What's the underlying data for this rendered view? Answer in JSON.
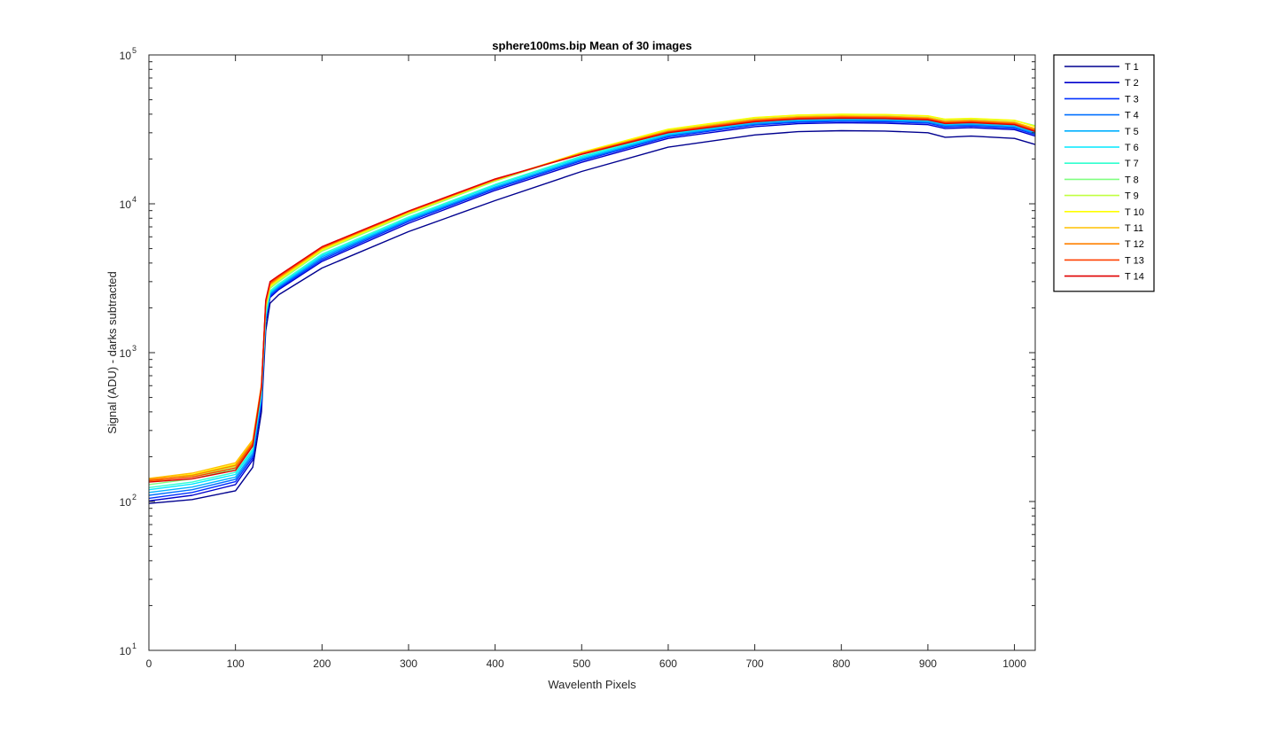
{
  "chart_data": {
    "type": "line",
    "title": "sphere100ms.bip  Mean of 30 images",
    "xlabel": "Wavelenth Pixels",
    "ylabel": "Signal (ADU) - darks subtracted",
    "xlim": [
      0,
      1024
    ],
    "ylim": [
      10,
      100000
    ],
    "yscale": "log",
    "grid": false,
    "legend_position": "outside-right",
    "x_ticks": [
      0,
      100,
      200,
      300,
      400,
      500,
      600,
      700,
      800,
      900,
      1000
    ],
    "x_tick_labels": [
      "0",
      "100",
      "200",
      "300",
      "400",
      "500",
      "600",
      "700",
      "800",
      "900",
      "1000"
    ],
    "y_ticks": [
      10,
      100,
      1000,
      10000,
      100000
    ],
    "y_tick_labels": [
      {
        "base": "10",
        "exp": "1"
      },
      {
        "base": "10",
        "exp": "2"
      },
      {
        "base": "10",
        "exp": "3"
      },
      {
        "base": "10",
        "exp": "4"
      },
      {
        "base": "10",
        "exp": "5"
      }
    ],
    "x": [
      0,
      50,
      100,
      120,
      130,
      135,
      140,
      150,
      200,
      300,
      400,
      500,
      600,
      700,
      750,
      800,
      850,
      900,
      920,
      950,
      1000,
      1024
    ],
    "series": [
      {
        "name": "T 1",
        "color": "#00008f",
        "values": [
          97,
          103,
          118,
          170,
          400,
          1400,
          2150,
          2450,
          3700,
          6500,
          10500,
          16500,
          24000,
          29000,
          30500,
          31000,
          30800,
          30000,
          28000,
          28500,
          27500,
          25000
        ]
      },
      {
        "name": "T 2",
        "color": "#0000cc",
        "values": [
          101,
          110,
          130,
          190,
          450,
          1600,
          2350,
          2650,
          4100,
          7400,
          12300,
          19000,
          27500,
          33000,
          34500,
          35000,
          34800,
          34000,
          32000,
          32500,
          31500,
          28500
        ]
      },
      {
        "name": "T 3",
        "color": "#0030ff",
        "values": [
          105,
          115,
          136,
          198,
          470,
          1650,
          2400,
          2700,
          4200,
          7600,
          12600,
          19500,
          28200,
          33800,
          35300,
          35800,
          35600,
          34800,
          32800,
          33300,
          32200,
          29200
        ]
      },
      {
        "name": "T 4",
        "color": "#0070ff",
        "values": [
          110,
          120,
          141,
          205,
          490,
          1700,
          2450,
          2750,
          4300,
          7750,
          12800,
          19800,
          28600,
          34300,
          35800,
          36300,
          36100,
          35300,
          33300,
          33800,
          32700,
          29600
        ]
      },
      {
        "name": "T 5",
        "color": "#00b0ff",
        "values": [
          115,
          125,
          146,
          212,
          510,
          1750,
          2500,
          2800,
          4400,
          7850,
          13000,
          20100,
          29000,
          34800,
          36300,
          36800,
          36600,
          35800,
          33800,
          34300,
          33200,
          30000
        ]
      },
      {
        "name": "T 6",
        "color": "#00e8ff",
        "values": [
          120,
          131,
          152,
          220,
          530,
          1800,
          2550,
          2850,
          4500,
          8000,
          13300,
          20500,
          29500,
          35400,
          36900,
          37400,
          37200,
          36400,
          34400,
          34900,
          33800,
          30600
        ]
      },
      {
        "name": "T 7",
        "color": "#30ffcf",
        "values": [
          124,
          135,
          157,
          226,
          545,
          1850,
          2600,
          2900,
          4600,
          8150,
          13500,
          20900,
          30100,
          36100,
          37600,
          38100,
          37900,
          37100,
          35100,
          35600,
          34500,
          31300
        ]
      },
      {
        "name": "T 8",
        "color": "#80ff80",
        "values": [
          130,
          142,
          166,
          240,
          570,
          1950,
          2700,
          3000,
          4800,
          8500,
          14200,
          22000,
          31500,
          37800,
          39300,
          39800,
          39600,
          38800,
          36800,
          37300,
          36200,
          33500
        ]
      },
      {
        "name": "T 9",
        "color": "#c0ff40",
        "values": [
          136,
          148,
          172,
          248,
          585,
          2000,
          2750,
          3050,
          4850,
          8600,
          14300,
          22100,
          31600,
          37900,
          39400,
          39900,
          39700,
          38900,
          36900,
          37400,
          36300,
          33200
        ]
      },
      {
        "name": "T 10",
        "color": "#ffff00",
        "values": [
          140,
          152,
          178,
          255,
          600,
          2050,
          2800,
          3100,
          4900,
          8700,
          14400,
          22200,
          31700,
          38000,
          39500,
          40000,
          39800,
          39000,
          37000,
          37500,
          36400,
          33000
        ]
      },
      {
        "name": "T 11",
        "color": "#ffc000",
        "values": [
          143,
          155,
          182,
          260,
          610,
          2100,
          2850,
          3150,
          5000,
          8800,
          14500,
          22000,
          31000,
          37000,
          38500,
          39000,
          38800,
          38000,
          36000,
          36500,
          35400,
          32000
        ]
      },
      {
        "name": "T 12",
        "color": "#ff8000",
        "values": [
          141,
          150,
          175,
          250,
          600,
          2150,
          2900,
          3200,
          5050,
          8850,
          14500,
          21800,
          30600,
          36500,
          38000,
          38500,
          38300,
          37500,
          35500,
          36000,
          34900,
          31500
        ]
      },
      {
        "name": "T 13",
        "color": "#ff4000",
        "values": [
          138,
          146,
          168,
          243,
          590,
          2200,
          2950,
          3250,
          5100,
          8900,
          14600,
          21600,
          30300,
          36000,
          37500,
          38000,
          37800,
          37000,
          35000,
          35500,
          34400,
          31000
        ]
      },
      {
        "name": "T 14",
        "color": "#e00000",
        "values": [
          135,
          142,
          162,
          236,
          580,
          2250,
          3000,
          3300,
          5150,
          8950,
          14700,
          21500,
          30000,
          35600,
          37100,
          37600,
          37400,
          36600,
          34600,
          35100,
          34000,
          30600
        ]
      }
    ]
  }
}
